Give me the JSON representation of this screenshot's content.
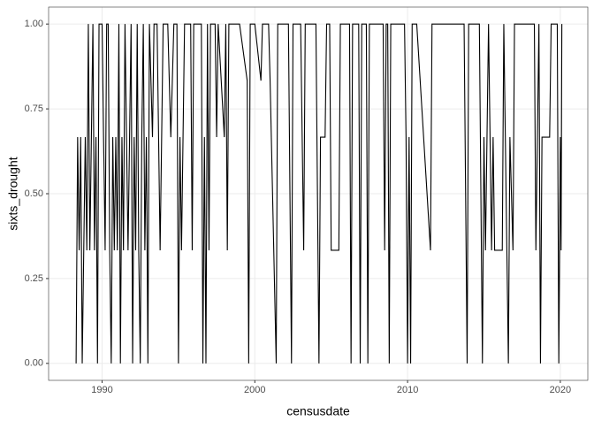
{
  "chart_data": {
    "type": "line",
    "xlabel": "censusdate",
    "ylabel": "sixts_drought",
    "xlim": [
      1986.5,
      2021.8
    ],
    "ylim": [
      -0.05,
      1.05
    ],
    "xticks": [
      1990,
      2000,
      2010,
      2020
    ],
    "yticks": [
      {
        "value": 0,
        "label": "0.00"
      },
      {
        "value": 0.25,
        "label": "0.25"
      },
      {
        "value": 0.5,
        "label": "0.50"
      },
      {
        "value": 0.75,
        "label": "0.75"
      },
      {
        "value": 1,
        "label": "1.00"
      }
    ],
    "grid": true,
    "series": [
      {
        "color": "#000000",
        "x": [
          1988.3,
          1988.4,
          1988.5,
          1988.6,
          1988.7,
          1988.8,
          1988.9,
          1989.0,
          1989.1,
          1989.2,
          1989.3,
          1989.4,
          1989.5,
          1989.6,
          1989.7,
          1989.8,
          1989.9,
          1990.0,
          1990.1,
          1990.2,
          1990.3,
          1990.4,
          1990.5,
          1990.6,
          1990.7,
          1990.8,
          1990.9,
          1991.0,
          1991.1,
          1991.2,
          1991.3,
          1991.4,
          1991.5,
          1991.6,
          1991.7,
          1991.8,
          1991.9,
          1992.0,
          1992.1,
          1992.2,
          1992.3,
          1992.4,
          1992.5,
          1992.6,
          1992.7,
          1992.8,
          1992.9,
          1993.0,
          1993.1,
          1993.3,
          1993.4,
          1993.6,
          1993.8,
          1994.0,
          1994.3,
          1994.5,
          1994.7,
          1994.9,
          1995.0,
          1995.1,
          1995.2,
          1995.4,
          1995.8,
          1995.9,
          1996.0,
          1996.5,
          1996.6,
          1996.7,
          1996.8,
          1996.9,
          1997.0,
          1997.1,
          1997.4,
          1997.5,
          1997.6,
          1998.0,
          1998.1,
          1998.2,
          1998.3,
          1999.0,
          1999.5,
          1999.6,
          1999.7,
          2000.0,
          2000.4,
          2000.5,
          2000.9,
          2001.0,
          2001.4,
          2001.5,
          2002.2,
          2002.4,
          2002.5,
          2003.0,
          2003.2,
          2003.3,
          2004.0,
          2004.2,
          2004.3,
          2004.6,
          2004.7,
          2004.9,
          2005.0,
          2005.5,
          2005.6,
          2006.2,
          2006.3,
          2006.4,
          2006.8,
          2006.9,
          2007.0,
          2007.3,
          2007.4,
          2007.5,
          2008.4,
          2008.5,
          2008.6,
          2008.7,
          2008.8,
          2008.9,
          2009.8,
          2009.9,
          2010.0,
          2010.1,
          2010.2,
          2010.3,
          2010.6,
          2011.5,
          2011.6,
          2013.7,
          2013.9,
          2014.0,
          2014.7,
          2014.9,
          2015.0,
          2015.1,
          2015.2,
          2015.3,
          2015.5,
          2015.6,
          2015.7,
          2016.2,
          2016.3,
          2016.6,
          2016.7,
          2016.9,
          2017.0,
          2018.3,
          2018.4,
          2018.6,
          2018.7,
          2018.8,
          2019.3,
          2019.4,
          2019.8,
          2019.9,
          2020.0,
          2020.05,
          2020.1
        ],
        "values": [
          0,
          0.6667,
          0.3333,
          0.6667,
          0,
          0.3333,
          0.6667,
          0.3333,
          1,
          0.3333,
          0.6667,
          1,
          0.3333,
          0.6667,
          0,
          1,
          1,
          1,
          0.6667,
          0.3333,
          1,
          1,
          0.3333,
          0,
          0.6667,
          0.3333,
          0.6667,
          0.3333,
          1,
          0,
          0.6667,
          0.3333,
          1,
          0.6667,
          0.3333,
          0.6667,
          1,
          0,
          0.6667,
          0.3333,
          1,
          0.3333,
          0,
          0.6667,
          1,
          0.3333,
          0.6667,
          0,
          1,
          0.6667,
          1,
          1,
          0.3333,
          1,
          1,
          0.6667,
          1,
          1,
          0,
          0.6667,
          0.3333,
          1,
          1,
          0.3333,
          1,
          1,
          0,
          0.6667,
          0,
          1,
          0.3333,
          1,
          1,
          0.6667,
          1,
          0.6667,
          1,
          0.3333,
          1,
          1,
          0.8333,
          0,
          1,
          1,
          0.8333,
          1,
          1,
          0.8333,
          0,
          1,
          1,
          0,
          1,
          1,
          0.3333,
          1,
          1,
          0,
          0.6667,
          0.6667,
          1,
          1,
          0.3333,
          0.3333,
          1,
          1,
          0,
          1,
          1,
          0,
          1,
          1,
          0,
          1,
          1,
          0.3333,
          1,
          1,
          0,
          1,
          1,
          0.6667,
          0,
          0.6667,
          0,
          1,
          1,
          0.3333,
          1,
          1,
          0,
          1,
          1,
          0,
          0.6667,
          0.3333,
          0.6667,
          1,
          0.3333,
          0.6667,
          0.3333,
          0.3333,
          1,
          0,
          0.6667,
          0.3333,
          1,
          1,
          0.3333,
          1,
          0,
          0.6667,
          0.6667,
          1,
          1,
          0,
          0.6667,
          0.3333,
          1
        ]
      }
    ]
  }
}
